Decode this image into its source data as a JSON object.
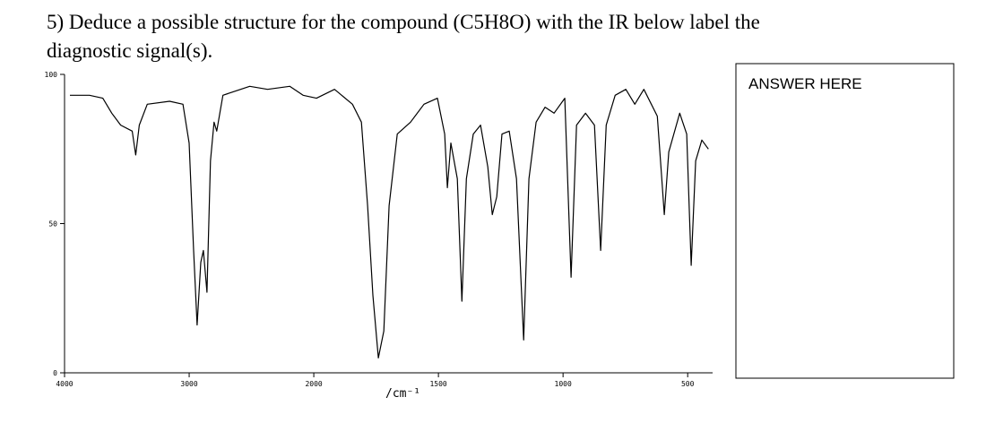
{
  "question": {
    "line1": "5) Deduce a possible structure for the compound (C5H8O)  with the IR below label the",
    "line2": "diagnostic signal(s)."
  },
  "answer_box": {
    "label": "ANSWER HERE"
  },
  "chart_data": {
    "type": "line",
    "x": [
      3957,
      3800,
      3693,
      3621,
      3550,
      3457,
      3429,
      3400,
      3336,
      3157,
      3050,
      3000,
      2964,
      2936,
      2907,
      2886,
      2857,
      2829,
      2800,
      2779,
      2729,
      2514,
      2371,
      2193,
      2086,
      1989,
      1917,
      1845,
      1809,
      1784,
      1763,
      1741,
      1719,
      1698,
      1665,
      1612,
      1558,
      1504,
      1475,
      1464,
      1450,
      1424,
      1406,
      1388,
      1360,
      1331,
      1302,
      1284,
      1266,
      1245,
      1216,
      1187,
      1158,
      1137,
      1108,
      1072,
      1036,
      993,
      968,
      946,
      910,
      874,
      849,
      827,
      791,
      748,
      712,
      676,
      622,
      604,
      594,
      576,
      532,
      504,
      486,
      468,
      443,
      417
    ],
    "series": [
      {
        "color": "#000000",
        "values": [
          93,
          93,
          92,
          87,
          83,
          81,
          73,
          83,
          90,
          91,
          90,
          77,
          41,
          16,
          37,
          41,
          27,
          71,
          84,
          81,
          93,
          96,
          95,
          96,
          93,
          92,
          95,
          90,
          84,
          56,
          26,
          5,
          14,
          56,
          80,
          84,
          90,
          92,
          80,
          62,
          77,
          65,
          24,
          65,
          80,
          83,
          69,
          53,
          59,
          80,
          81,
          65,
          11,
          65,
          84,
          89,
          87,
          92,
          32,
          83,
          87,
          83,
          41,
          83,
          93,
          95,
          90,
          95,
          86,
          65,
          53,
          74,
          87,
          80,
          36,
          71,
          78,
          75
        ]
      }
    ],
    "xlim": [
      4000,
      400
    ],
    "ylim": [
      0,
      100
    ],
    "xticks": [
      4000,
      3000,
      2000,
      1500,
      1000,
      500
    ],
    "yticks": [
      0,
      50,
      100
    ],
    "xscale_break": 2000,
    "x_label": "/cm⁻¹"
  }
}
